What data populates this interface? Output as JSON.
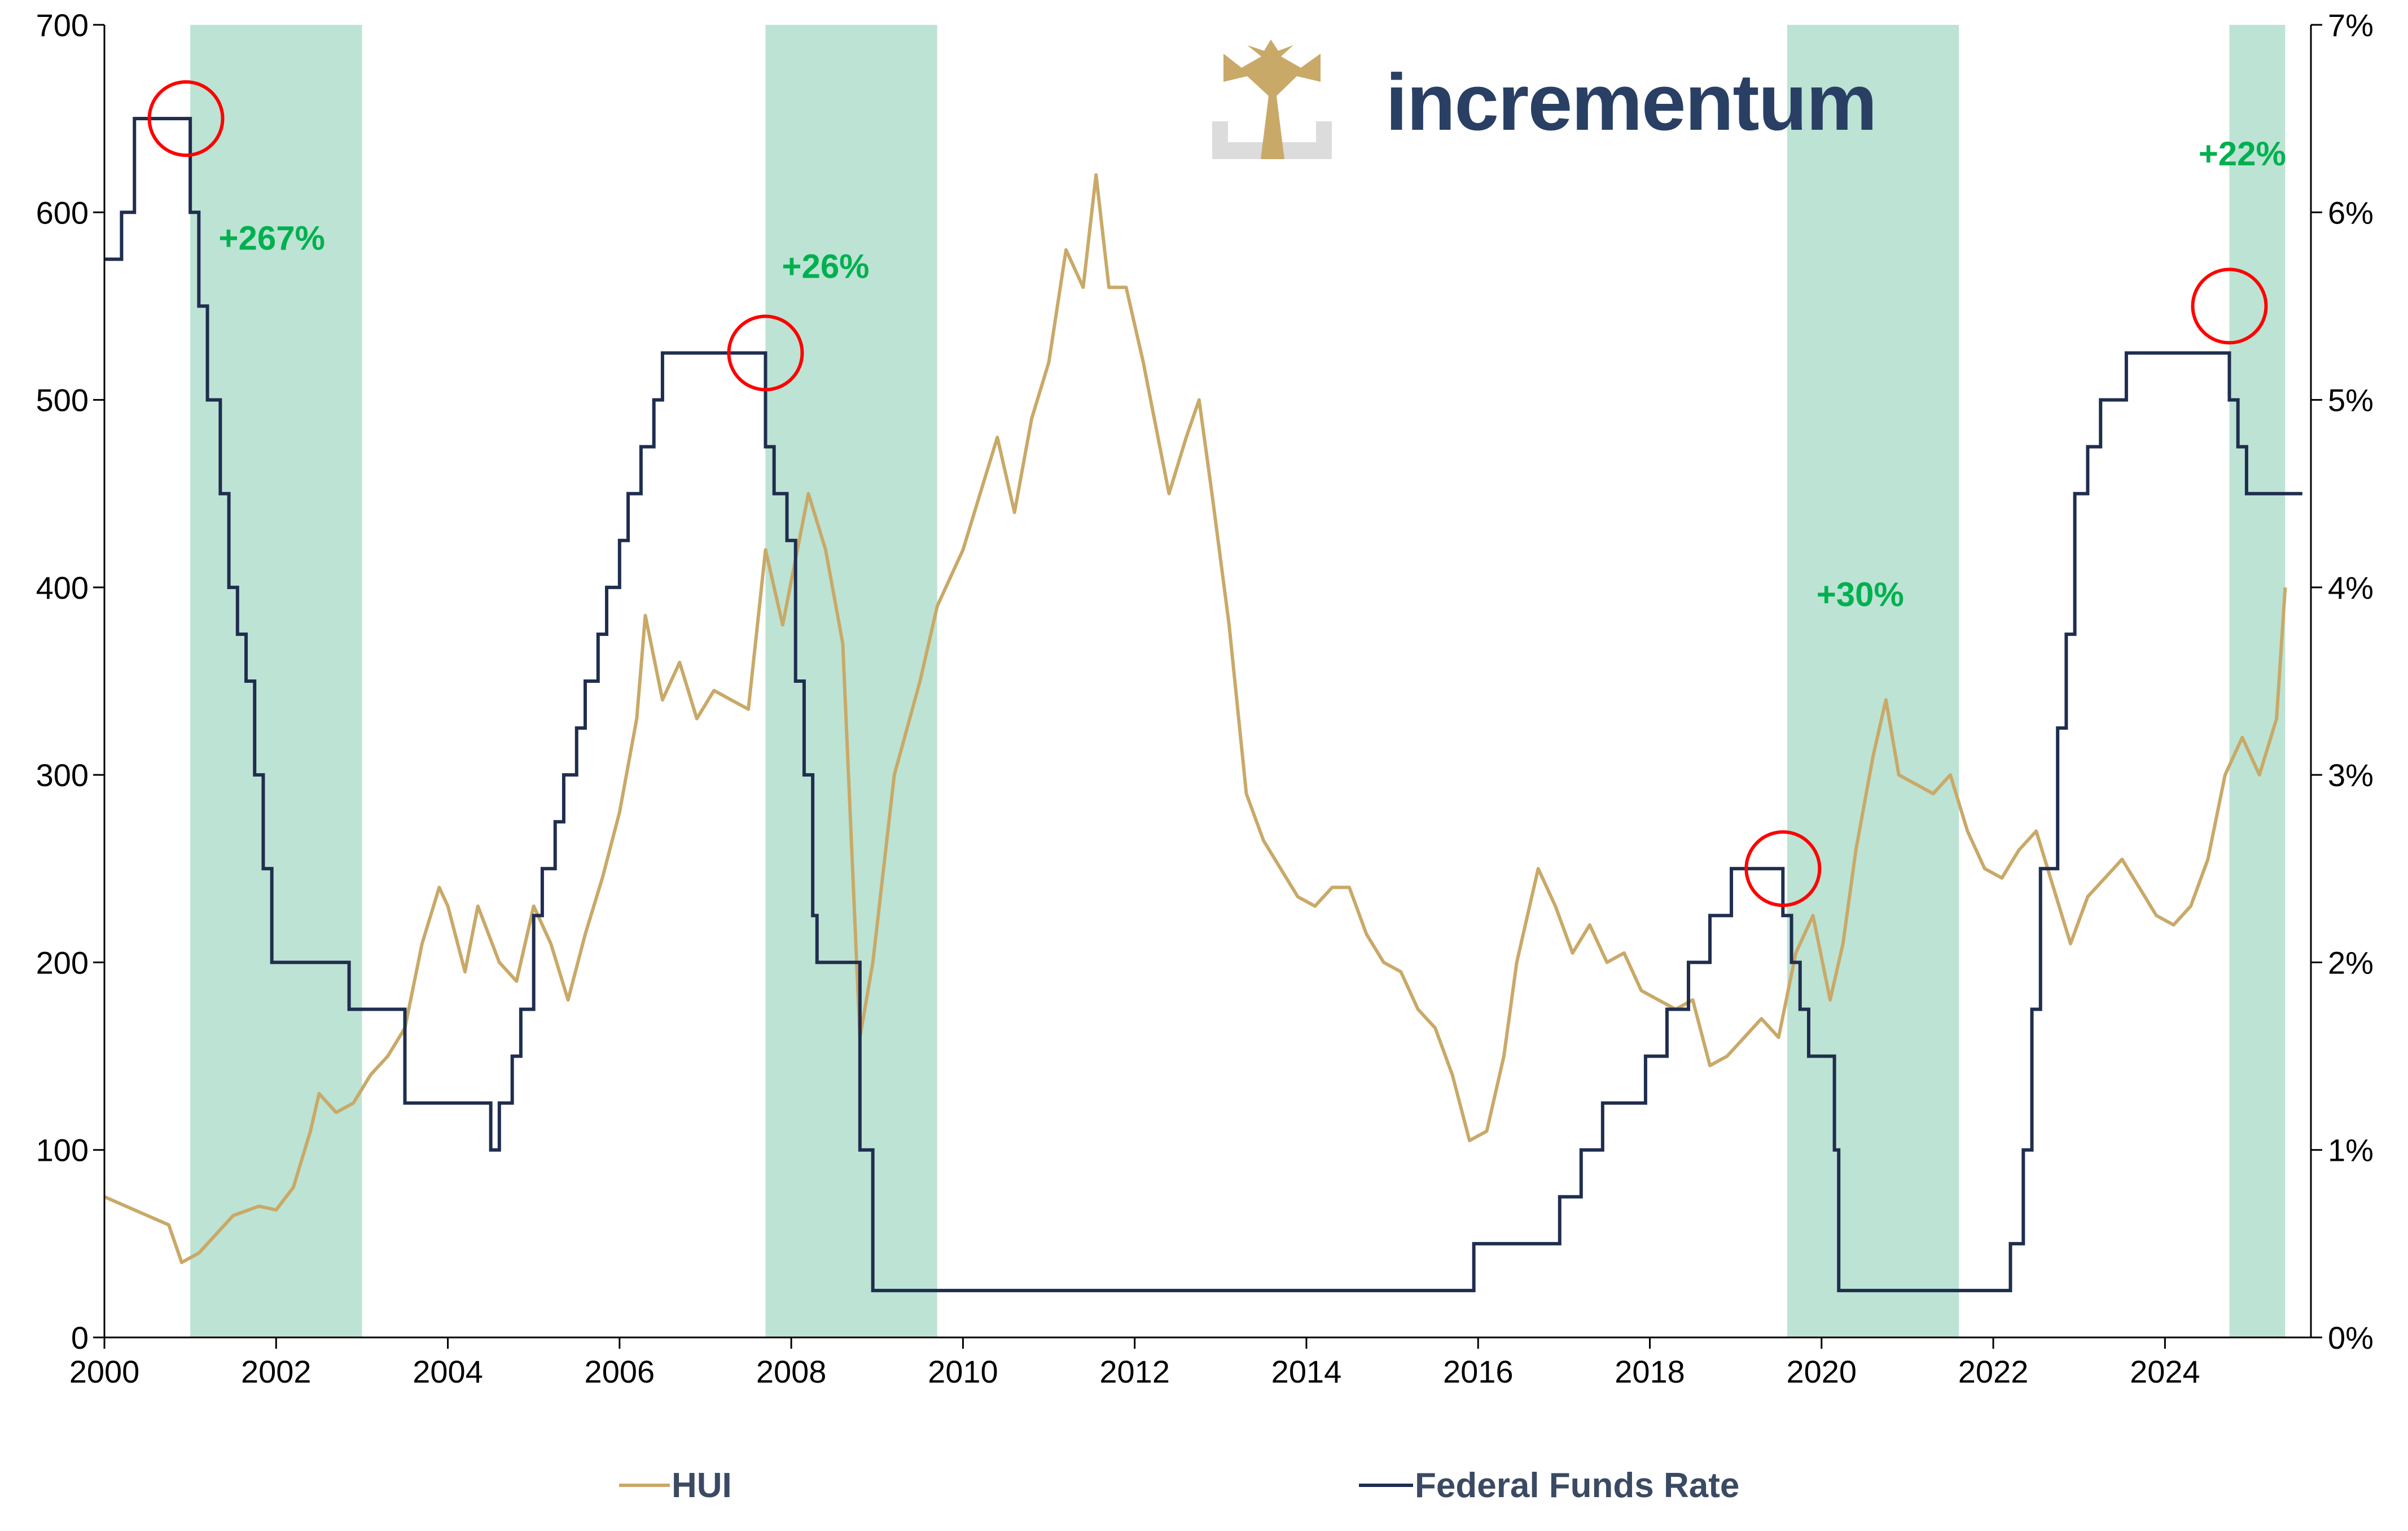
{
  "brand": {
    "name": "incrementum"
  },
  "chart_data": {
    "type": "line",
    "title": "",
    "xlabel": "",
    "xlim": [
      2000,
      2025.7
    ],
    "x_ticks": [
      "2000",
      "2002",
      "2004",
      "2006",
      "2008",
      "2010",
      "2012",
      "2014",
      "2016",
      "2018",
      "2020",
      "2022",
      "2024"
    ],
    "y_left": {
      "label": "",
      "ylim": [
        0,
        700
      ],
      "ticks": [
        "0",
        "100",
        "200",
        "300",
        "400",
        "500",
        "600",
        "700"
      ]
    },
    "y_right": {
      "label": "",
      "ylim": [
        0,
        7
      ],
      "ticks": [
        "0%",
        "1%",
        "2%",
        "3%",
        "4%",
        "5%",
        "6%",
        "7%"
      ]
    },
    "grid": false,
    "legend_position": "bottom",
    "shaded_periods": [
      {
        "start": 2001.0,
        "end": 2003.0
      },
      {
        "start": 2007.7,
        "end": 2009.7
      },
      {
        "start": 2019.6,
        "end": 2021.6
      },
      {
        "start": 2024.75,
        "end": 2025.4
      }
    ],
    "markers": [
      {
        "x": 2000.95,
        "y_right": 6.5
      },
      {
        "x": 2007.7,
        "y_right": 5.25
      },
      {
        "x": 2019.55,
        "y_right": 2.5
      },
      {
        "x": 2024.75,
        "y_right": 5.5
      }
    ],
    "annotations": [
      {
        "text": "+267%",
        "x": 2001.95,
        "y_left": 580
      },
      {
        "text": "+26%",
        "x": 2008.4,
        "y_left": 565
      },
      {
        "text": "+30%",
        "x": 2020.45,
        "y_left": 390
      },
      {
        "text": "+22%",
        "x": 2024.9,
        "y_left": 625
      }
    ],
    "series": [
      {
        "name": "HUI",
        "axis": "left",
        "color": "#c9a968",
        "x": [
          2000.0,
          2000.25,
          2000.5,
          2000.75,
          2000.9,
          2001.1,
          2001.3,
          2001.5,
          2001.8,
          2002.0,
          2002.2,
          2002.4,
          2002.5,
          2002.7,
          2002.9,
          2003.1,
          2003.3,
          2003.5,
          2003.7,
          2003.9,
          2004.0,
          2004.2,
          2004.35,
          2004.6,
          2004.8,
          2005.0,
          2005.2,
          2005.4,
          2005.6,
          2005.8,
          2006.0,
          2006.2,
          2006.3,
          2006.5,
          2006.7,
          2006.9,
          2007.1,
          2007.3,
          2007.5,
          2007.7,
          2007.9,
          2008.2,
          2008.4,
          2008.6,
          2008.8,
          2008.95,
          2009.2,
          2009.5,
          2009.7,
          2010.0,
          2010.2,
          2010.4,
          2010.6,
          2010.8,
          2011.0,
          2011.2,
          2011.4,
          2011.55,
          2011.7,
          2011.9,
          2012.1,
          2012.4,
          2012.6,
          2012.75,
          2012.9,
          2013.1,
          2013.3,
          2013.5,
          2013.7,
          2013.9,
          2014.1,
          2014.3,
          2014.5,
          2014.7,
          2014.9,
          2015.1,
          2015.3,
          2015.5,
          2015.7,
          2015.9,
          2016.1,
          2016.3,
          2016.45,
          2016.7,
          2016.9,
          2017.1,
          2017.3,
          2017.5,
          2017.7,
          2017.9,
          2018.1,
          2018.3,
          2018.5,
          2018.7,
          2018.9,
          2019.1,
          2019.3,
          2019.5,
          2019.7,
          2019.9,
          2020.1,
          2020.25,
          2020.4,
          2020.6,
          2020.75,
          2020.9,
          2021.1,
          2021.3,
          2021.5,
          2021.7,
          2021.9,
          2022.1,
          2022.3,
          2022.5,
          2022.7,
          2022.9,
          2023.1,
          2023.3,
          2023.5,
          2023.7,
          2023.9,
          2024.1,
          2024.3,
          2024.5,
          2024.7,
          2024.9,
          2025.1,
          2025.3,
          2025.4
        ],
        "values": [
          75,
          70,
          65,
          60,
          40,
          45,
          55,
          65,
          70,
          68,
          80,
          110,
          130,
          120,
          125,
          140,
          150,
          165,
          210,
          240,
          230,
          195,
          230,
          200,
          190,
          230,
          210,
          180,
          215,
          245,
          280,
          330,
          385,
          340,
          360,
          330,
          345,
          340,
          335,
          420,
          380,
          450,
          420,
          370,
          160,
          200,
          300,
          350,
          390,
          420,
          450,
          480,
          440,
          490,
          520,
          580,
          560,
          620,
          560,
          560,
          520,
          450,
          480,
          500,
          450,
          380,
          290,
          265,
          250,
          235,
          230,
          240,
          240,
          215,
          200,
          195,
          175,
          165,
          140,
          105,
          110,
          150,
          200,
          250,
          230,
          205,
          220,
          200,
          205,
          185,
          180,
          175,
          180,
          145,
          150,
          160,
          170,
          160,
          205,
          225,
          180,
          210,
          260,
          310,
          340,
          300,
          295,
          290,
          300,
          270,
          250,
          245,
          260,
          270,
          240,
          210,
          235,
          245,
          255,
          240,
          225,
          220,
          230,
          255,
          300,
          320,
          300,
          330,
          400
        ]
      },
      {
        "name": "Federal Funds Rate",
        "axis": "right",
        "color": "#1f2e4f",
        "x": [
          2000.0,
          2000.2,
          2000.35,
          2000.4,
          2001.0,
          2001.1,
          2001.2,
          2001.35,
          2001.45,
          2001.55,
          2001.65,
          2001.75,
          2001.85,
          2001.95,
          2002.85,
          2003.5,
          2004.5,
          2004.6,
          2004.75,
          2004.85,
          2005.0,
          2005.1,
          2005.25,
          2005.35,
          2005.5,
          2005.6,
          2005.75,
          2005.85,
          2006.0,
          2006.1,
          2006.25,
          2006.4,
          2006.5,
          2007.7,
          2007.8,
          2007.95,
          2008.05,
          2008.15,
          2008.25,
          2008.3,
          2008.8,
          2008.95,
          2009.0,
          2015.95,
          2016.95,
          2017.2,
          2017.45,
          2017.95,
          2018.2,
          2018.45,
          2018.7,
          2018.95,
          2019.55,
          2019.65,
          2019.75,
          2019.85,
          2020.15,
          2020.2,
          2022.2,
          2022.35,
          2022.45,
          2022.55,
          2022.75,
          2022.85,
          2022.95,
          2023.1,
          2023.25,
          2023.55,
          2024.75,
          2024.85,
          2024.95,
          2025.6
        ],
        "values": [
          5.75,
          6.0,
          6.5,
          6.5,
          6.0,
          5.5,
          5.0,
          4.5,
          4.0,
          3.75,
          3.5,
          3.0,
          2.5,
          2.0,
          1.75,
          1.25,
          1.0,
          1.25,
          1.5,
          1.75,
          2.25,
          2.5,
          2.75,
          3.0,
          3.25,
          3.5,
          3.75,
          4.0,
          4.25,
          4.5,
          4.75,
          5.0,
          5.25,
          4.75,
          4.5,
          4.25,
          3.5,
          3.0,
          2.25,
          2.0,
          1.0,
          0.25,
          0.25,
          0.5,
          0.75,
          1.0,
          1.25,
          1.5,
          1.75,
          2.0,
          2.25,
          2.5,
          2.25,
          2.0,
          1.75,
          1.5,
          1.0,
          0.25,
          0.5,
          1.0,
          1.75,
          2.5,
          3.25,
          3.75,
          4.5,
          4.75,
          5.0,
          5.25,
          5.0,
          4.75,
          4.5,
          4.5
        ]
      }
    ]
  }
}
